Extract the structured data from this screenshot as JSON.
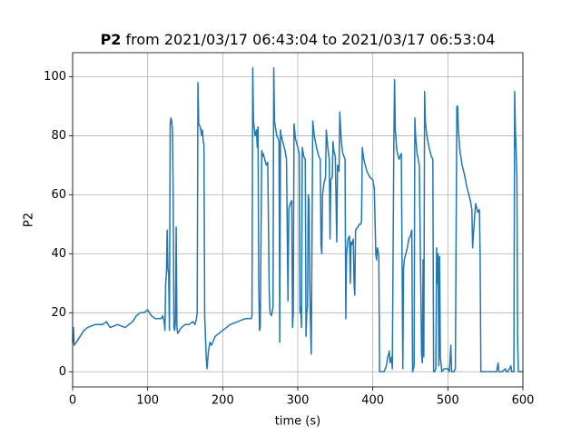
{
  "chart_data": {
    "type": "line",
    "title": {
      "name": "P2",
      "text": " from 2021/03/17 06:43:04 to 2021/03/17 06:53:04"
    },
    "x_label": "time (s)",
    "y_label": "P2",
    "color": "#1f77b4",
    "grid": true,
    "xlim": [
      0,
      600
    ],
    "xticks": [
      0,
      100,
      200,
      300,
      400,
      500,
      600
    ],
    "ylim": [
      -5.15,
      108.15
    ],
    "yticks": [
      0,
      20,
      40,
      60,
      80,
      100
    ],
    "x": [
      0,
      1,
      2,
      5,
      10,
      15,
      20,
      30,
      40,
      45,
      50,
      60,
      70,
      80,
      85,
      90,
      95,
      100,
      105,
      110,
      118,
      120,
      122,
      123,
      124,
      125,
      126,
      127,
      128,
      129,
      130,
      131,
      132,
      133,
      134,
      135,
      136,
      137,
      138,
      139,
      140,
      145,
      150,
      155,
      160,
      163,
      165,
      166,
      167,
      168,
      170,
      172,
      173,
      174,
      175,
      176,
      177,
      178,
      179,
      181,
      183,
      185,
      190,
      200,
      210,
      220,
      230,
      238,
      239,
      240,
      241,
      243,
      245,
      246,
      247,
      248,
      249,
      250,
      252,
      253,
      254,
      256,
      258,
      260,
      262,
      263,
      265,
      267,
      268,
      269,
      272,
      274,
      275,
      276,
      277,
      278,
      280,
      283,
      285,
      287,
      288,
      290,
      292,
      293,
      294,
      295,
      297,
      300,
      302,
      303,
      304,
      305,
      306,
      308,
      310,
      311,
      312,
      313,
      314,
      315,
      316,
      317,
      318,
      320,
      322,
      325,
      328,
      330,
      331,
      332,
      333,
      335,
      337,
      338,
      340,
      342,
      343,
      344,
      346,
      347,
      348,
      350,
      352,
      353,
      355,
      356,
      358,
      360,
      363,
      364,
      365,
      367,
      369,
      370,
      371,
      372,
      374,
      375,
      376,
      377,
      380,
      382,
      384,
      385,
      386,
      388,
      392,
      396,
      400,
      402,
      404,
      405,
      406,
      407,
      408,
      409,
      412,
      415,
      418,
      420,
      422,
      423,
      425,
      426,
      428,
      429,
      430,
      432,
      435,
      438,
      440,
      441,
      442,
      444,
      446,
      448,
      450,
      452,
      453,
      455,
      456,
      457,
      459,
      462,
      465,
      466,
      467,
      468,
      469,
      470,
      472,
      475,
      478,
      480,
      481,
      482,
      484,
      485,
      486,
      487,
      488,
      489,
      490,
      492,
      495,
      500,
      502,
      504,
      505,
      508,
      510,
      512,
      513,
      514,
      516,
      519,
      522,
      525,
      528,
      530,
      532,
      533,
      535,
      537,
      540,
      542,
      543,
      544,
      548,
      555,
      560,
      565,
      567,
      568,
      572,
      577,
      578,
      580,
      584,
      585,
      588,
      589,
      590,
      591,
      592,
      593,
      594,
      600
    ],
    "values": [
      10,
      15,
      9,
      10,
      12,
      14,
      15,
      16,
      16,
      17,
      15,
      16,
      15,
      17,
      19,
      20,
      20,
      21,
      19,
      18,
      18,
      19,
      17,
      14,
      30,
      33,
      48,
      35,
      33,
      14,
      84,
      86,
      85,
      82,
      60,
      15,
      14,
      17,
      49,
      15,
      13,
      15,
      16,
      16,
      17,
      16,
      18,
      20,
      98,
      84,
      83,
      80,
      82,
      78,
      77,
      19,
      12,
      5,
      1,
      7,
      10,
      9,
      12,
      14,
      16,
      17,
      18,
      18,
      19,
      103,
      85,
      80,
      82,
      76,
      83,
      30,
      14,
      15,
      75,
      73,
      74,
      72,
      70,
      71,
      27,
      20,
      19,
      22,
      103,
      85,
      80,
      79,
      78,
      10,
      82,
      80,
      78,
      75,
      72,
      24,
      55,
      57,
      58,
      15,
      20,
      84,
      79,
      76,
      74,
      20,
      22,
      15,
      76,
      73,
      72,
      12,
      20,
      22,
      60,
      58,
      30,
      16,
      6,
      85,
      80,
      76,
      73,
      72,
      43,
      40,
      60,
      64,
      66,
      82,
      76,
      72,
      45,
      65,
      66,
      78,
      75,
      73,
      44,
      70,
      68,
      88,
      78,
      74,
      72,
      18,
      40,
      45,
      46,
      30,
      44,
      43,
      45,
      30,
      26,
      48,
      49,
      50,
      50,
      51,
      76,
      72,
      68,
      66,
      65,
      62,
      40,
      38,
      42,
      41,
      39,
      0,
      0,
      0,
      2,
      5,
      7,
      3,
      5,
      1,
      77,
      99,
      82,
      75,
      72,
      74,
      1,
      35,
      38,
      40,
      42,
      45,
      46,
      48,
      0,
      2,
      86,
      80,
      74,
      70,
      6,
      3,
      38,
      5,
      95,
      85,
      80,
      76,
      73,
      72,
      0,
      0,
      1,
      42,
      30,
      40,
      2,
      39,
      5,
      0,
      1,
      1,
      0,
      9,
      0,
      0,
      1,
      90,
      90,
      82,
      75,
      70,
      67,
      63,
      60,
      58,
      55,
      42,
      50,
      57,
      54,
      55,
      40,
      0,
      0,
      0,
      0,
      0,
      3,
      0,
      0,
      1,
      0,
      0,
      2,
      0,
      0,
      95,
      82,
      75,
      66,
      10,
      0,
      0
    ]
  }
}
